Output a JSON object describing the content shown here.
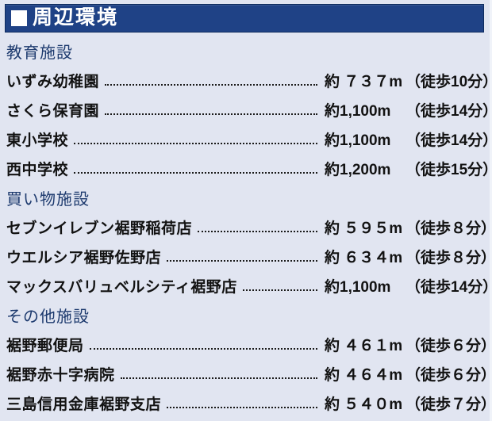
{
  "page": {
    "background_color": "#e1e5f1",
    "text_color": "#121212"
  },
  "header": {
    "title": "周辺環境",
    "icon": "square-bullet-icon",
    "bar_color": "#1f4286",
    "border_color": "#0d2b5e",
    "text_color": "#ffffff"
  },
  "section_heading_color": "#1d3a6e",
  "sections": [
    {
      "heading": "教育施設",
      "rows": [
        {
          "name": "いずみ幼稚園",
          "distance": "約 ７３７m",
          "walk": "（徒歩10分）"
        },
        {
          "name": "さくら保育園",
          "distance": "約1,100m",
          "walk": "（徒歩14分）"
        },
        {
          "name": "東小学校",
          "distance": "約1,100m",
          "walk": "（徒歩14分）"
        },
        {
          "name": "西中学校",
          "distance": "約1,200m",
          "walk": "（徒歩15分）"
        }
      ]
    },
    {
      "heading": "買い物施設",
      "rows": [
        {
          "name": "セブンイレブン裾野稲荷店",
          "distance": "約 ５９５m",
          "walk": "（徒歩８分）"
        },
        {
          "name": "ウエルシア裾野佐野店",
          "distance": "約 ６３４m",
          "walk": "（徒歩８分）"
        },
        {
          "name": "マックスバリュベルシティ裾野店",
          "distance": "約1,100m",
          "walk": "（徒歩14分）"
        }
      ]
    },
    {
      "heading": "その他施設",
      "rows": [
        {
          "name": "裾野郵便局",
          "distance": "約 ４６１m",
          "walk": "（徒歩６分）"
        },
        {
          "name": "裾野赤十字病院",
          "distance": "約 ４６４m",
          "walk": "（徒歩６分）"
        },
        {
          "name": "三島信用金庫裾野支店",
          "distance": "約 ５４０m",
          "walk": "（徒歩７分）"
        }
      ]
    }
  ]
}
